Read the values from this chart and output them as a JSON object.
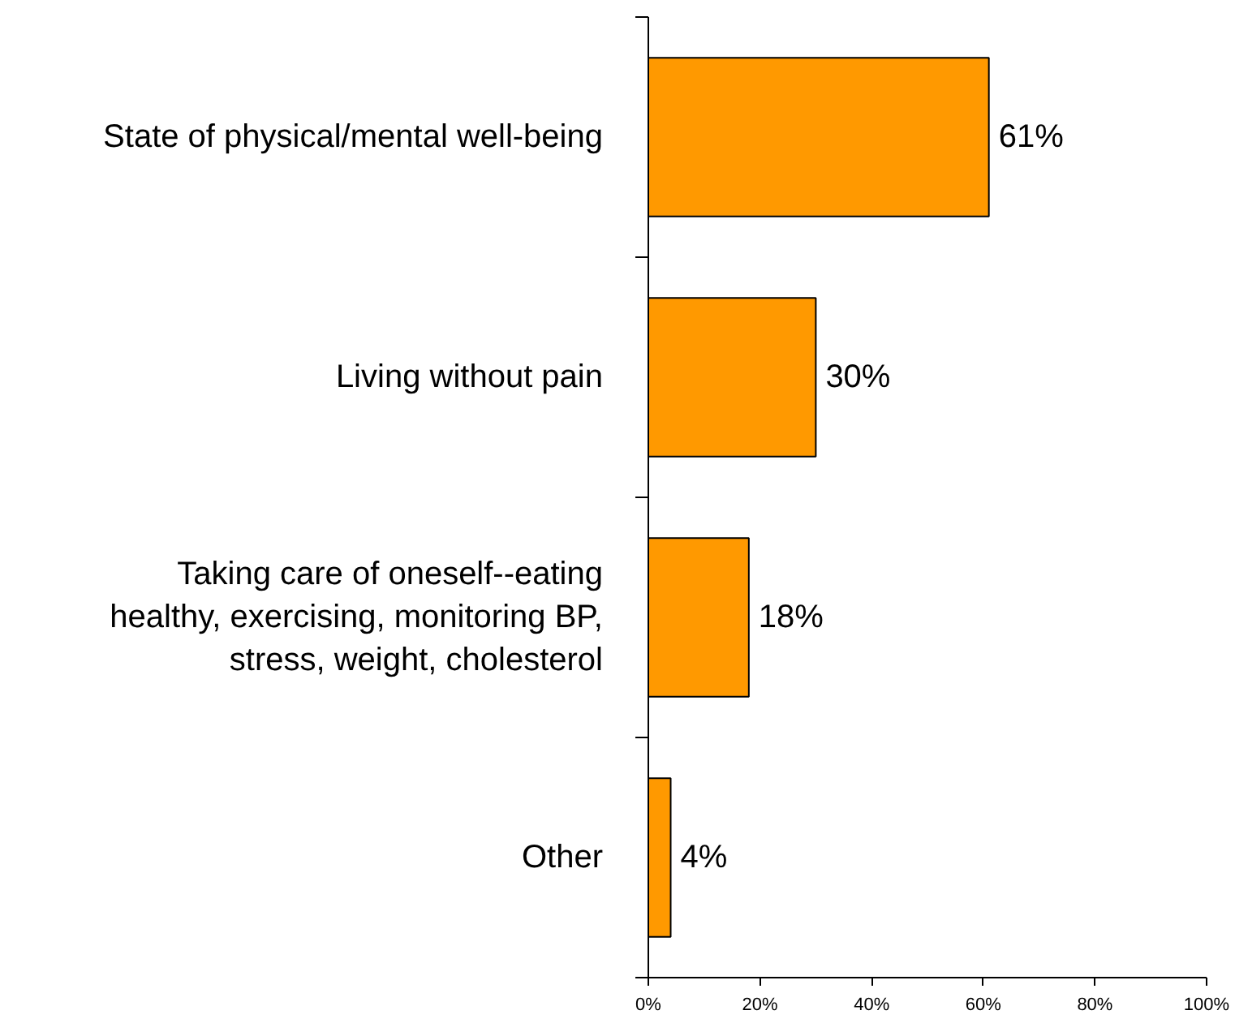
{
  "chart_data": {
    "type": "bar",
    "orientation": "horizontal",
    "categories": [
      "State of physical/mental well-being",
      "Living without pain",
      "Taking care of oneself--eating\nhealthy, exercising, monitoring BP,\nstress, weight, cholesterol",
      "Other"
    ],
    "values": [
      61,
      30,
      18,
      4
    ],
    "color": "#ff9900",
    "value_labels": [
      "61%",
      "30%",
      "18%",
      "4%"
    ],
    "xlim": [
      0,
      100
    ],
    "xticks": [
      {
        "value": 0,
        "label": "0%"
      },
      {
        "value": 20,
        "label": "20%"
      },
      {
        "value": 40,
        "label": "40%"
      },
      {
        "value": 60,
        "label": "60%"
      },
      {
        "value": 80,
        "label": "80%"
      },
      {
        "value": 100,
        "label": "100%"
      }
    ],
    "grid": false
  }
}
